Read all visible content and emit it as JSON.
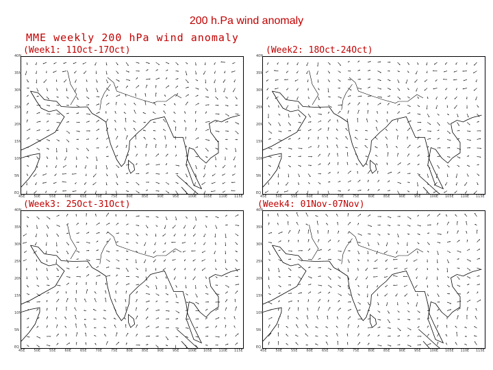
{
  "slide": {
    "title": "200  h.Pa  wind anomaly"
  },
  "figure": {
    "title": "MME weekly 200 hPa wind anomaly"
  },
  "panels": [
    {
      "label": "(Week1: 11Oct-17Oct)"
    },
    {
      "label": "(Week2: 18Oct-24Oct)"
    },
    {
      "label": "(Week3: 25Oct-31Oct)"
    },
    {
      "label": "(Week4: 01Nov-07Nov)"
    }
  ],
  "axes": {
    "lat_ticks": [
      "40N",
      "35N",
      "30N",
      "25N",
      "20N",
      "15N",
      "10N",
      "5N",
      "EQ"
    ],
    "lon_ticks": [
      "45E",
      "50E",
      "55E",
      "60E",
      "65E",
      "70E",
      "75E",
      "80E",
      "85E",
      "90E",
      "95E",
      "100E",
      "105E",
      "110E",
      "115E"
    ]
  },
  "colors": {
    "title": "#c00000",
    "vectors": "#222222",
    "coast": "#000000"
  }
}
